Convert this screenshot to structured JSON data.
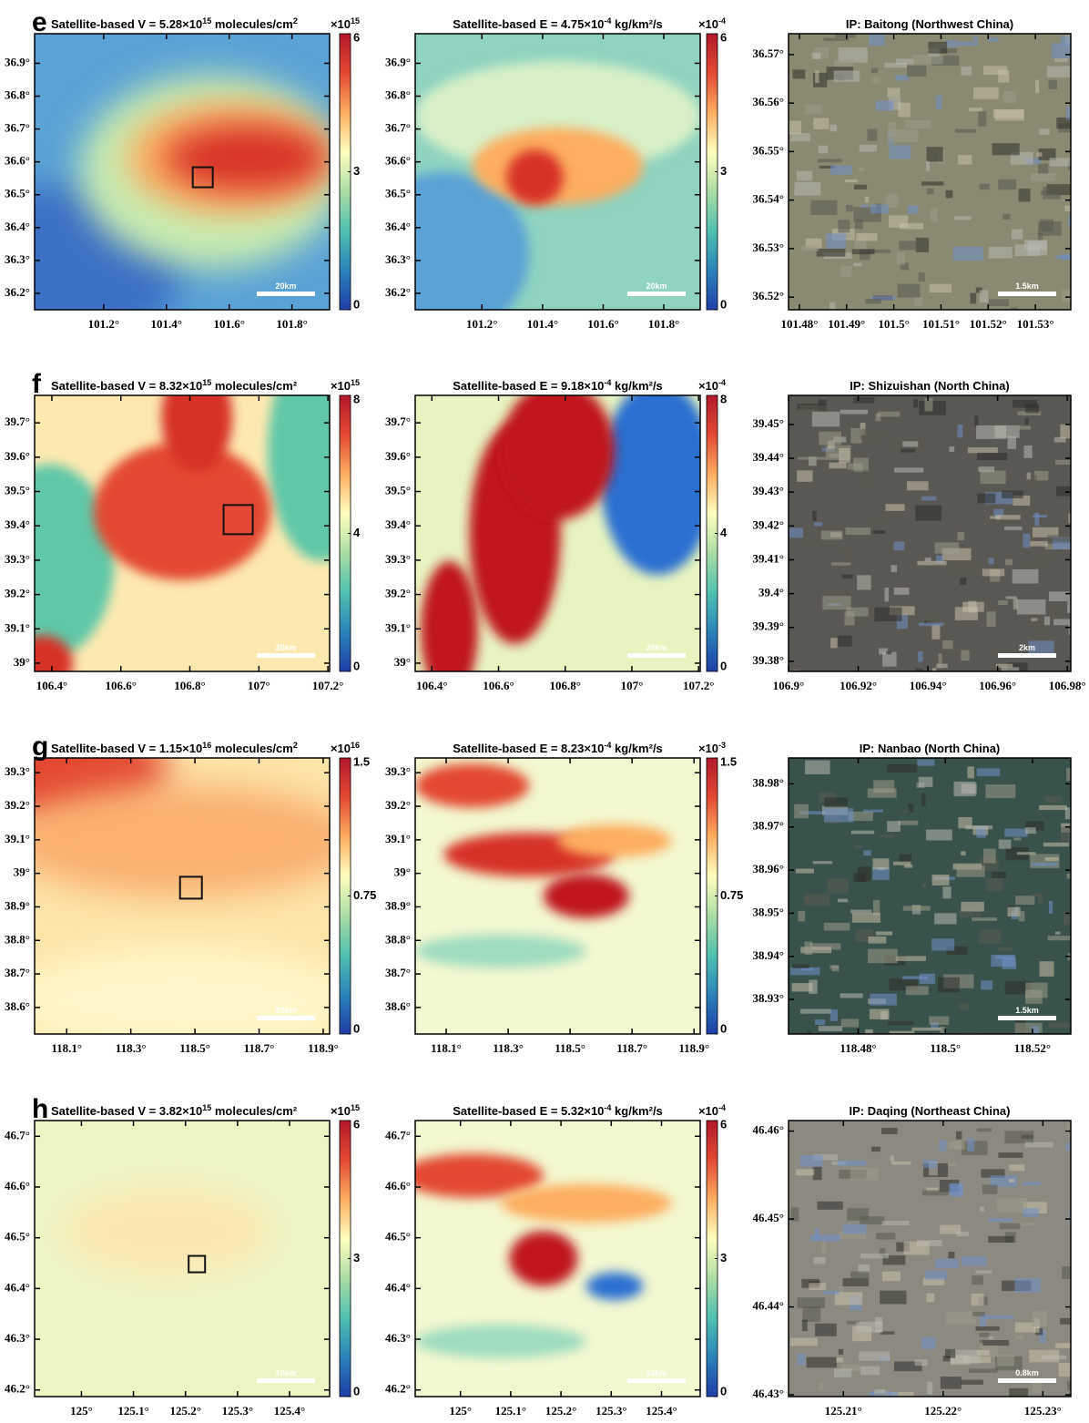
{
  "colormap": [
    "#1f3ea8",
    "#2b83ba",
    "#4fc1b0",
    "#abdda4",
    "#ffffbf",
    "#fdae61",
    "#e34a33",
    "#b2182b"
  ],
  "chart_data": [
    {
      "type": "heatmap",
      "label": "e",
      "title": [
        "Satellite-based V = 5.28×10",
        "15",
        " molecules/cm",
        "2"
      ],
      "xlim": [
        100.98,
        101.92
      ],
      "ylim": [
        36.15,
        36.99
      ],
      "xticks": [
        {
          "value": 101.2,
          "label": "101.2°"
        },
        {
          "value": 101.4,
          "label": "101.4°"
        },
        {
          "value": 101.6,
          "label": "101.6°"
        },
        {
          "value": 101.8,
          "label": "101.8°"
        }
      ],
      "yticks": [
        {
          "value": 36.2,
          "label": "36.2°"
        },
        {
          "value": 36.3,
          "label": "36.3°"
        },
        {
          "value": 36.4,
          "label": "36.4°"
        },
        {
          "value": 36.5,
          "label": "36.5°"
        },
        {
          "value": 36.6,
          "label": "36.6°"
        },
        {
          "value": 36.7,
          "label": "36.7°"
        },
        {
          "value": 36.8,
          "label": "36.8°"
        },
        {
          "value": 36.9,
          "label": "36.9°"
        }
      ],
      "colorbar": {
        "lim": [
          0,
          6
        ],
        "ticks": [
          0,
          3,
          6
        ],
        "multiplier": [
          "×10",
          "15"
        ]
      },
      "scale_bar": "20km"
    },
    {
      "type": "heatmap",
      "title": [
        "Satellite-based E = 4.75×10",
        "-4",
        " kg/km²/s"
      ],
      "xlim": [
        100.98,
        101.92
      ],
      "ylim": [
        36.15,
        36.99
      ],
      "xticks": [
        {
          "value": 101.2,
          "label": "101.2°"
        },
        {
          "value": 101.4,
          "label": "101.4°"
        },
        {
          "value": 101.6,
          "label": "101.6°"
        },
        {
          "value": 101.8,
          "label": "101.8°"
        }
      ],
      "yticks": [
        {
          "value": 36.2,
          "label": "36.2°"
        },
        {
          "value": 36.3,
          "label": "36.3°"
        },
        {
          "value": 36.4,
          "label": "36.4°"
        },
        {
          "value": 36.5,
          "label": "36.5°"
        },
        {
          "value": 36.6,
          "label": "36.6°"
        },
        {
          "value": 36.7,
          "label": "36.7°"
        },
        {
          "value": 36.8,
          "label": "36.8°"
        },
        {
          "value": 36.9,
          "label": "36.9°"
        }
      ],
      "colorbar": {
        "lim": [
          0,
          6
        ],
        "ticks": [
          0,
          3,
          6
        ],
        "multiplier": [
          "×10",
          "-4"
        ]
      },
      "scale_bar": "20km"
    },
    {
      "type": "image",
      "title": [
        "IP: Baitong (Northwest China)"
      ],
      "xlim": [
        101.4777,
        101.5375
      ],
      "ylim": [
        36.5174,
        36.5743
      ],
      "xticks": [
        {
          "value": 101.48,
          "label": "101.48°"
        },
        {
          "value": 101.49,
          "label": "101.49°"
        },
        {
          "value": 101.5,
          "label": "101.5°"
        },
        {
          "value": 101.51,
          "label": "101.51°"
        },
        {
          "value": 101.52,
          "label": "101.52°"
        },
        {
          "value": 101.53,
          "label": "101.53°"
        }
      ],
      "yticks": [
        {
          "value": 36.52,
          "label": "36.52°"
        },
        {
          "value": 36.53,
          "label": "36.53°"
        },
        {
          "value": 36.54,
          "label": "36.54°"
        },
        {
          "value": 36.55,
          "label": "36.55°"
        },
        {
          "value": 36.56,
          "label": "36.56°"
        },
        {
          "value": 36.57,
          "label": "36.57°"
        }
      ],
      "scale_bar": "1.5km"
    },
    {
      "type": "heatmap",
      "label": "f",
      "title": [
        "Satellite-based V = 8.32×10",
        "15",
        " molecules/cm²"
      ],
      "xlim": [
        106.35,
        107.205
      ],
      "ylim": [
        38.976,
        39.78
      ],
      "xticks": [
        {
          "value": 106.4,
          "label": "106.4°"
        },
        {
          "value": 106.6,
          "label": "106.6°"
        },
        {
          "value": 106.8,
          "label": "106.8°"
        },
        {
          "value": 107,
          "label": "107°"
        },
        {
          "value": 107.2,
          "label": "107.2°"
        }
      ],
      "yticks": [
        {
          "value": 39,
          "label": "39°"
        },
        {
          "value": 39.1,
          "label": "39.1°"
        },
        {
          "value": 39.2,
          "label": "39.2°"
        },
        {
          "value": 39.3,
          "label": "39.3°"
        },
        {
          "value": 39.4,
          "label": "39.4°"
        },
        {
          "value": 39.5,
          "label": "39.5°"
        },
        {
          "value": 39.6,
          "label": "39.6°"
        },
        {
          "value": 39.7,
          "label": "39.7°"
        }
      ],
      "colorbar": {
        "lim": [
          0,
          8
        ],
        "ticks": [
          0,
          4,
          8
        ],
        "multiplier": [
          "×10",
          "15"
        ]
      },
      "scale_bar": "20km"
    },
    {
      "type": "heatmap",
      "title": [
        "Satellite-based E = 9.18×10",
        "-4",
        " kg/km²/s"
      ],
      "xlim": [
        106.35,
        107.205
      ],
      "ylim": [
        38.976,
        39.78
      ],
      "xticks": [
        {
          "value": 106.4,
          "label": "106.4°"
        },
        {
          "value": 106.6,
          "label": "106.6°"
        },
        {
          "value": 106.8,
          "label": "106.8°"
        },
        {
          "value": 107,
          "label": "107°"
        },
        {
          "value": 107.2,
          "label": "107.2°"
        }
      ],
      "yticks": [
        {
          "value": 39,
          "label": "39°"
        },
        {
          "value": 39.1,
          "label": "39.1°"
        },
        {
          "value": 39.2,
          "label": "39.2°"
        },
        {
          "value": 39.3,
          "label": "39.3°"
        },
        {
          "value": 39.4,
          "label": "39.4°"
        },
        {
          "value": 39.5,
          "label": "39.5°"
        },
        {
          "value": 39.6,
          "label": "39.6°"
        },
        {
          "value": 39.7,
          "label": "39.7°"
        }
      ],
      "colorbar": {
        "lim": [
          0,
          8
        ],
        "ticks": [
          0,
          4,
          8
        ],
        "multiplier": [
          "×10",
          "-4"
        ]
      },
      "scale_bar": "20km"
    },
    {
      "type": "image",
      "title": [
        "IP: Shizuishan (North China)"
      ],
      "xlim": [
        106.9,
        106.981
      ],
      "ylim": [
        39.377,
        39.4586
      ],
      "xticks": [
        {
          "value": 106.9,
          "label": "106.9°"
        },
        {
          "value": 106.92,
          "label": "106.92°"
        },
        {
          "value": 106.94,
          "label": "106.94°"
        },
        {
          "value": 106.96,
          "label": "106.96°"
        },
        {
          "value": 106.98,
          "label": "106.98°"
        }
      ],
      "yticks": [
        {
          "value": 39.38,
          "label": "39.38°"
        },
        {
          "value": 39.39,
          "label": "39.39°"
        },
        {
          "value": 39.4,
          "label": "39.4°"
        },
        {
          "value": 39.41,
          "label": "39.41°"
        },
        {
          "value": 39.42,
          "label": "39.42°"
        },
        {
          "value": 39.43,
          "label": "39.43°"
        },
        {
          "value": 39.44,
          "label": "39.44°"
        },
        {
          "value": 39.45,
          "label": "39.45°"
        }
      ],
      "scale_bar": "2km"
    },
    {
      "type": "heatmap",
      "label": "g",
      "title": [
        "Satellite-based V = 1.15×10",
        "16",
        " molecules/cm",
        "2"
      ],
      "xlim": [
        118.0,
        118.92
      ],
      "ylim": [
        38.521,
        39.344
      ],
      "xticks": [
        {
          "value": 118.1,
          "label": "118.1°"
        },
        {
          "value": 118.3,
          "label": "118.3°"
        },
        {
          "value": 118.5,
          "label": "118.5°"
        },
        {
          "value": 118.7,
          "label": "118.7°"
        },
        {
          "value": 118.9,
          "label": "118.9°"
        }
      ],
      "yticks": [
        {
          "value": 38.6,
          "label": "38.6°"
        },
        {
          "value": 38.7,
          "label": "38.7°"
        },
        {
          "value": 38.8,
          "label": "38.8°"
        },
        {
          "value": 38.9,
          "label": "38.9°"
        },
        {
          "value": 39,
          "label": "39°"
        },
        {
          "value": 39.1,
          "label": "39.1°"
        },
        {
          "value": 39.2,
          "label": "39.2°"
        },
        {
          "value": 39.3,
          "label": "39.3°"
        }
      ],
      "colorbar": {
        "lim": [
          0,
          1.5
        ],
        "ticks": [
          0,
          0.75,
          1.5
        ],
        "multiplier": [
          "×10",
          "16"
        ]
      },
      "scale_bar": "20km"
    },
    {
      "type": "heatmap",
      "title": [
        "Satellite-based E = 8.23×10",
        "-4",
        " kg/km²/s"
      ],
      "xlim": [
        118.0,
        118.92
      ],
      "ylim": [
        38.521,
        39.344
      ],
      "xticks": [
        {
          "value": 118.1,
          "label": "118.1°"
        },
        {
          "value": 118.3,
          "label": "118.3°"
        },
        {
          "value": 118.5,
          "label": "118.5°"
        },
        {
          "value": 118.7,
          "label": "118.7°"
        },
        {
          "value": 118.9,
          "label": "118.9°"
        }
      ],
      "yticks": [
        {
          "value": 38.6,
          "label": "38.6°"
        },
        {
          "value": 38.7,
          "label": "38.7°"
        },
        {
          "value": 38.8,
          "label": "38.8°"
        },
        {
          "value": 38.9,
          "label": "38.9°"
        },
        {
          "value": 39,
          "label": "39°"
        },
        {
          "value": 39.1,
          "label": "39.1°"
        },
        {
          "value": 39.2,
          "label": "39.2°"
        },
        {
          "value": 39.3,
          "label": "39.3°"
        }
      ],
      "colorbar": {
        "lim": [
          0,
          1.5
        ],
        "ticks": [
          0,
          0.75,
          1.5
        ],
        "multiplier": [
          "×10",
          "-3"
        ]
      }
    },
    {
      "type": "image",
      "title": [
        "IP: Nanbao (North China)"
      ],
      "xlim": [
        118.464,
        118.5288
      ],
      "ylim": [
        38.922,
        38.986
      ],
      "xticks": [
        {
          "value": 118.48,
          "label": "118.48°"
        },
        {
          "value": 118.5,
          "label": "118.5°"
        },
        {
          "value": 118.52,
          "label": "118.52°"
        }
      ],
      "yticks": [
        {
          "value": 38.93,
          "label": "38.93°"
        },
        {
          "value": 38.94,
          "label": "38.94°"
        },
        {
          "value": 38.95,
          "label": "38.95°"
        },
        {
          "value": 38.96,
          "label": "38.96°"
        },
        {
          "value": 38.97,
          "label": "38.97°"
        },
        {
          "value": 38.98,
          "label": "38.98°"
        }
      ],
      "scale_bar": "1.5km"
    },
    {
      "type": "heatmap",
      "label": "h",
      "title": [
        "Satellite-based V = 3.82×10",
        "15",
        " molecules/cm²"
      ],
      "xlim": [
        124.91,
        125.477
      ],
      "ylim": [
        46.187,
        46.731
      ],
      "xticks": [
        {
          "value": 125,
          "label": "125°"
        },
        {
          "value": 125.1,
          "label": "125.1°"
        },
        {
          "value": 125.2,
          "label": "125.2°"
        },
        {
          "value": 125.3,
          "label": "125.3°"
        },
        {
          "value": 125.4,
          "label": "125.4°"
        }
      ],
      "yticks": [
        {
          "value": 46.2,
          "label": "46.2°"
        },
        {
          "value": 46.3,
          "label": "46.3°"
        },
        {
          "value": 46.4,
          "label": "46.4°"
        },
        {
          "value": 46.5,
          "label": "46.5°"
        },
        {
          "value": 46.6,
          "label": "46.6°"
        },
        {
          "value": 46.7,
          "label": "46.7°"
        }
      ],
      "colorbar": {
        "lim": [
          0,
          6
        ],
        "ticks": [
          0,
          3,
          6
        ],
        "multiplier": [
          "×10",
          "15"
        ]
      },
      "scale_bar": "10km"
    },
    {
      "type": "heatmap",
      "title": [
        "Satellite-based E = 5.32×10",
        "-4",
        " kg/km²/s"
      ],
      "xlim": [
        124.91,
        125.477
      ],
      "ylim": [
        46.187,
        46.731
      ],
      "xticks": [
        {
          "value": 125,
          "label": "125°"
        },
        {
          "value": 125.1,
          "label": "125.1°"
        },
        {
          "value": 125.2,
          "label": "125.2°"
        },
        {
          "value": 125.3,
          "label": "125.3°"
        },
        {
          "value": 125.4,
          "label": "125.4°"
        }
      ],
      "yticks": [
        {
          "value": 46.2,
          "label": "46.2°"
        },
        {
          "value": 46.3,
          "label": "46.3°"
        },
        {
          "value": 46.4,
          "label": "46.4°"
        },
        {
          "value": 46.5,
          "label": "46.5°"
        },
        {
          "value": 46.6,
          "label": "46.6°"
        },
        {
          "value": 46.7,
          "label": "46.7°"
        }
      ],
      "colorbar": {
        "lim": [
          0,
          6
        ],
        "ticks": [
          0,
          3,
          6
        ],
        "multiplier": [
          "×10",
          "-4"
        ]
      },
      "scale_bar": "10km"
    },
    {
      "type": "image",
      "title": [
        "IP: Daqing (Northeast China)"
      ],
      "xlim": [
        125.2045,
        125.2328
      ],
      "ylim": [
        46.4298,
        46.4612
      ],
      "xticks": [
        {
          "value": 125.21,
          "label": "125.21°"
        },
        {
          "value": 125.22,
          "label": "125.22°"
        },
        {
          "value": 125.23,
          "label": "125.23°"
        }
      ],
      "yticks": [
        {
          "value": 46.43,
          "label": "46.43°"
        },
        {
          "value": 46.44,
          "label": "46.44°"
        },
        {
          "value": 46.45,
          "label": "46.45°"
        },
        {
          "value": 46.46,
          "label": "46.46°"
        }
      ],
      "scale_bar": "0.8km"
    }
  ]
}
